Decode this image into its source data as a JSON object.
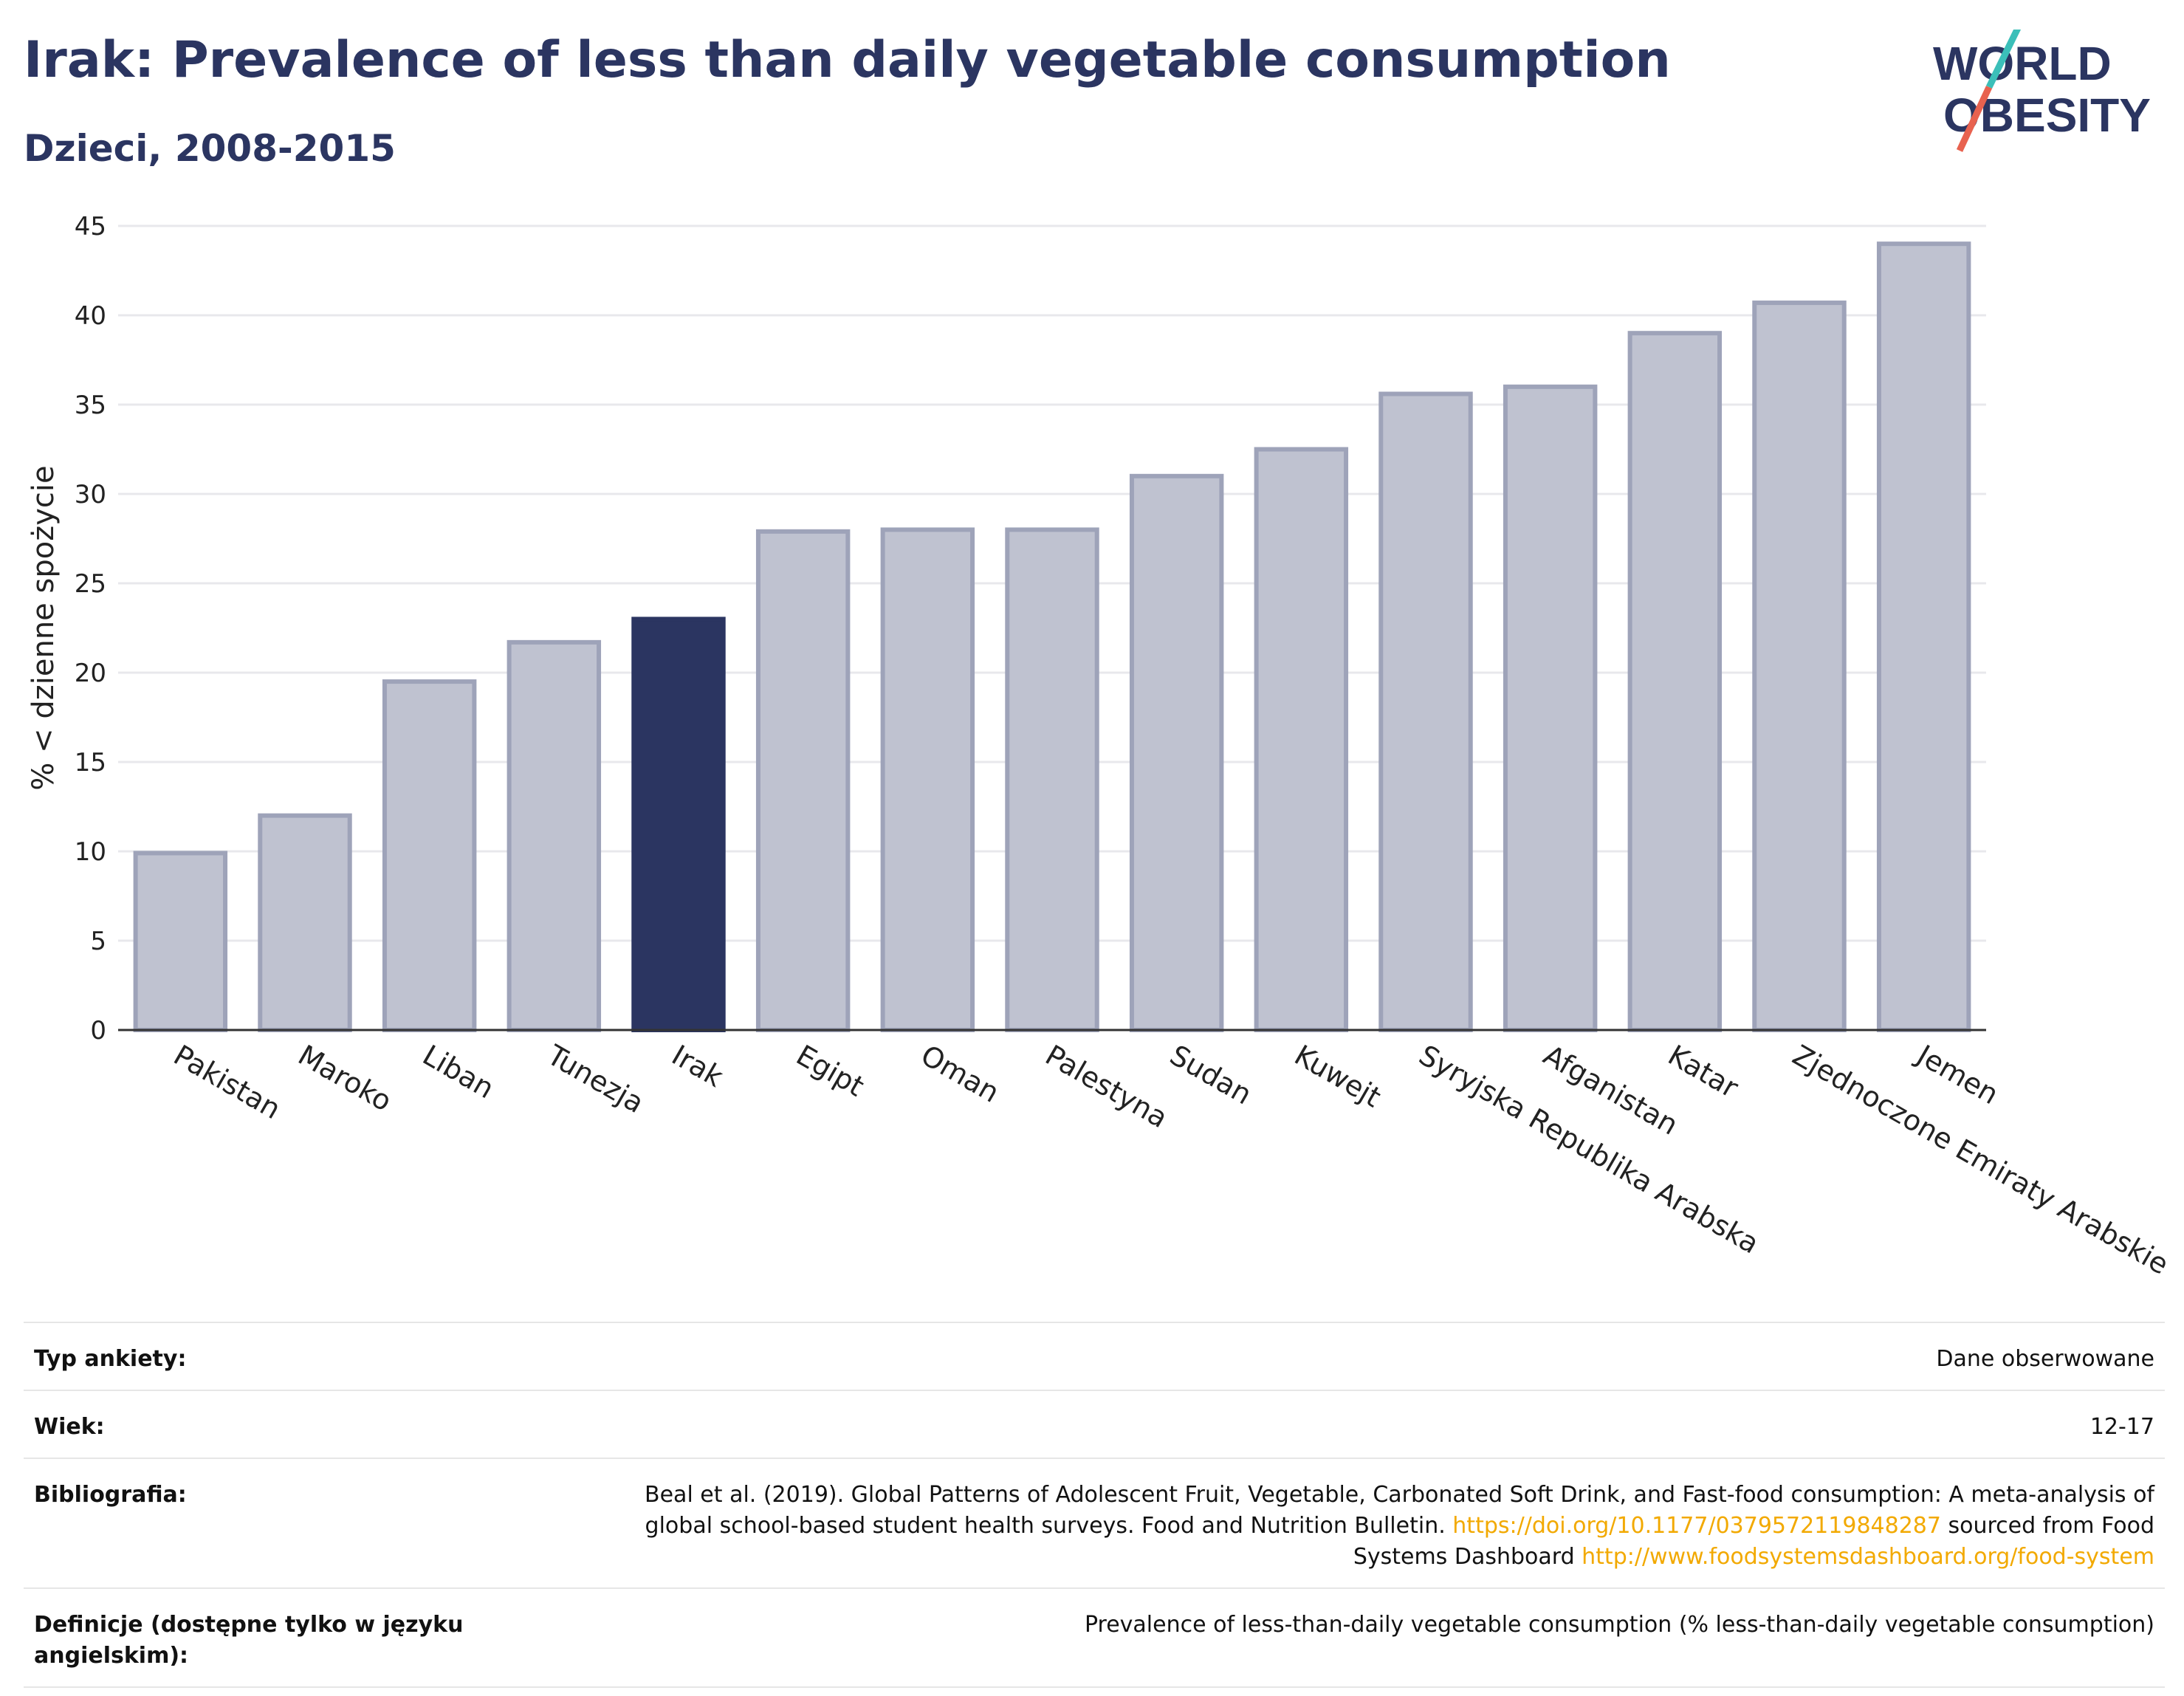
{
  "header": {
    "title": "Irak: Prevalence of less than daily vegetable consumption",
    "subtitle": "Dzieci, 2008-2015"
  },
  "logo": {
    "line1": "WORLD",
    "line2": "OBESITY",
    "accent_teal": "#3bbfb9",
    "accent_red": "#e8624f",
    "color": "#2b3561"
  },
  "chart_data": {
    "type": "bar",
    "ylabel": "% < dzienne spożycie",
    "ylim": [
      0,
      45
    ],
    "yticks": [
      0,
      5,
      10,
      15,
      20,
      25,
      30,
      35,
      40,
      45
    ],
    "grid": true,
    "categories": [
      "Pakistan",
      "Maroko",
      "Liban",
      "Tunezja",
      "Irak",
      "Egipt",
      "Oman",
      "Palestyna",
      "Sudan",
      "Kuwejt",
      "Syryjska Republika Arabska",
      "Afganistan",
      "Katar",
      "Zjednoczone Emiraty Arabskie",
      "Jemen"
    ],
    "values": [
      9.9,
      12.0,
      19.5,
      21.7,
      23.0,
      27.9,
      28.0,
      28.0,
      31.0,
      32.5,
      35.6,
      36.0,
      39.0,
      40.7,
      44.0
    ],
    "highlight": "Irak",
    "colors": {
      "bar": "#bfc2d0",
      "bar_border": "#9ea3b9",
      "highlight": "#2b3561"
    }
  },
  "info": {
    "rows": [
      {
        "label": "Typ ankiety:",
        "value": "Dane obserwowane"
      },
      {
        "label": "Wiek:",
        "value": "12-17"
      },
      {
        "label": "Bibliografia:",
        "value_pre": "Beal et al. (2019). Global Patterns of Adolescent Fruit, Vegetable, Carbonated Soft Drink, and Fast-food consumption: A meta-analysis of global school-based student health surveys. Food and Nutrition Bulletin. ",
        "link1": "https://doi.org/10.1177/0379572119848287",
        "value_mid": " sourced from Food Systems Dashboard ",
        "link2": "http://www.foodsystemsdashboard.org/food-system"
      },
      {
        "label": "Definicje (dostępne tylko w języku angielskim):",
        "value": "Prevalence of less-than-daily vegetable consumption (% less-than-daily vegetable consumption)"
      }
    ]
  }
}
